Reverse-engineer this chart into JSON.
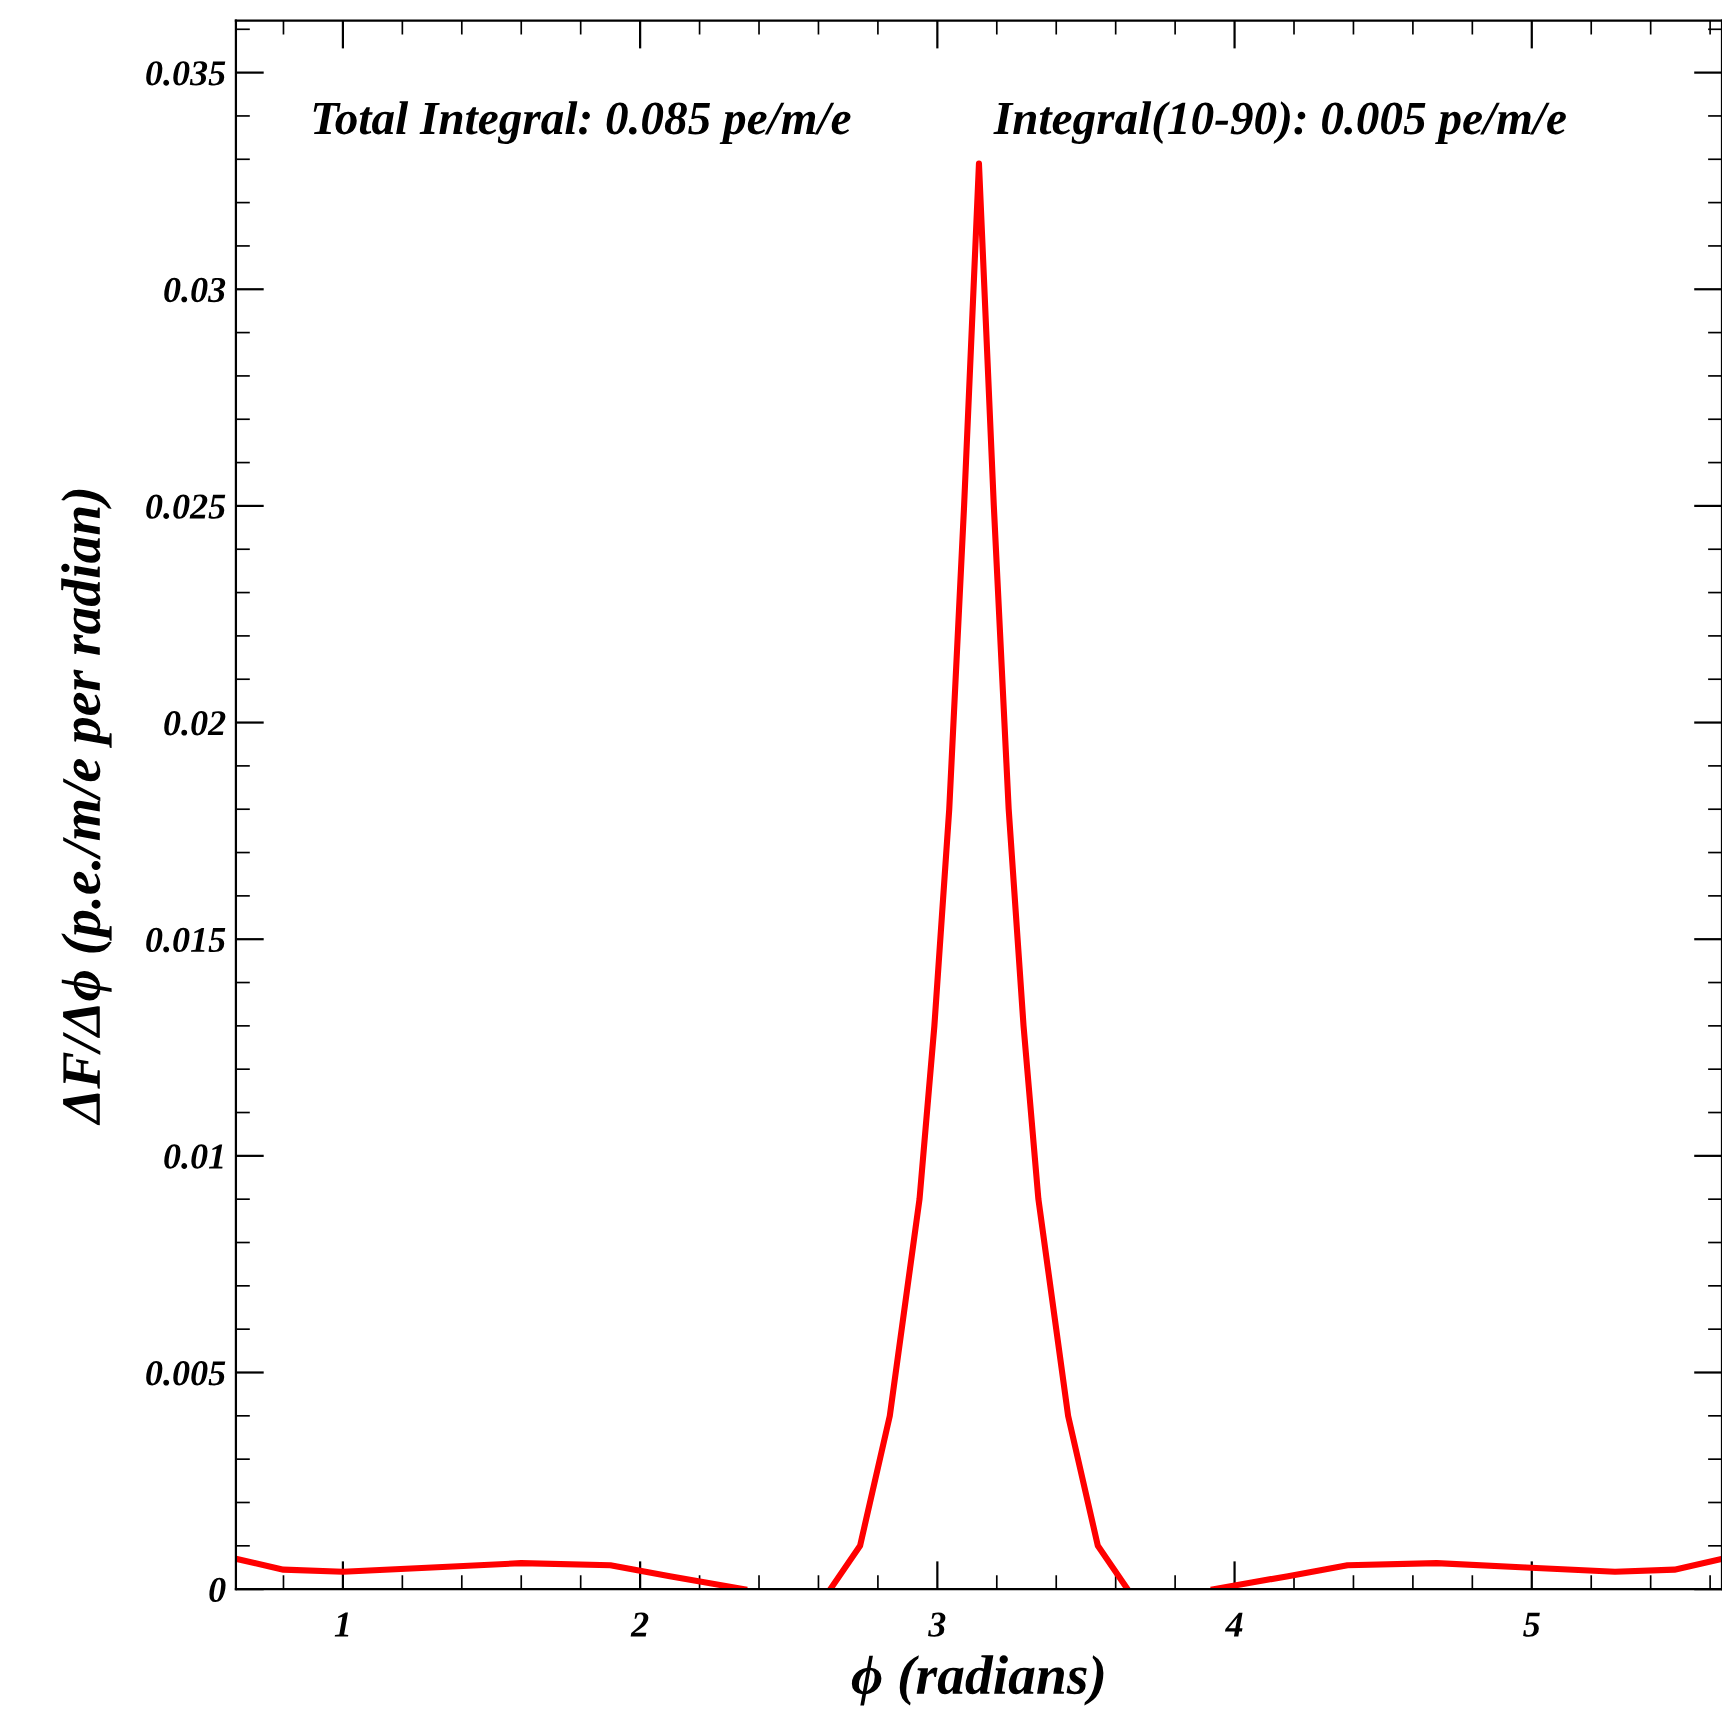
{
  "chart_data": {
    "type": "line",
    "xlabel": "ϕ (radians)",
    "ylabel": "ΔF/Δϕ (p.e./m/e per radian)",
    "annotations": [
      "Total Integral: 0.085 pe/m/e",
      "Integral(10-90): 0.005 pe/m/e"
    ],
    "x": [
      0.64,
      0.8,
      1.0,
      1.3,
      1.6,
      1.9,
      2.1,
      2.35,
      2.5,
      2.64,
      2.74,
      2.84,
      2.94,
      2.99,
      3.04,
      3.09,
      3.14,
      3.19,
      3.24,
      3.29,
      3.34,
      3.44,
      3.54,
      3.64,
      3.78,
      3.93,
      4.18,
      4.38,
      4.68,
      4.98,
      5.28,
      5.48,
      5.64
    ],
    "series": [
      {
        "color": "#ff0000",
        "values": [
          0.0007,
          0.00045,
          0.0004,
          0.0005,
          0.0006,
          0.00055,
          0.0003,
          0.0,
          null,
          0.0,
          0.001,
          0.004,
          0.009,
          0.013,
          0.018,
          0.025,
          0.0329,
          0.025,
          0.018,
          0.013,
          0.009,
          0.004,
          0.001,
          0.0,
          null,
          0.0,
          0.0003,
          0.00055,
          0.0006,
          0.0005,
          0.0004,
          0.00045,
          0.0007
        ]
      }
    ],
    "xlim": [
      0.64,
      5.64
    ],
    "xticks": [
      1,
      2,
      3,
      4,
      5
    ],
    "ylim": [
      0,
      0.0362
    ],
    "yticks": [
      0,
      0.005,
      0.01,
      0.015,
      0.02,
      0.025,
      0.03,
      0.035
    ],
    "grid": false,
    "marker": "none",
    "line_style": "solid"
  }
}
